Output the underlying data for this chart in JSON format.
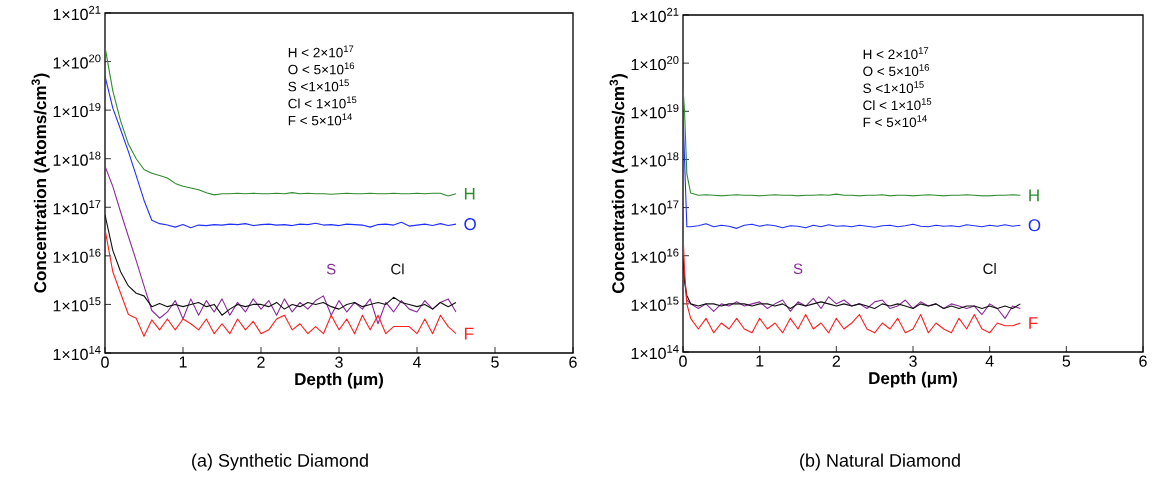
{
  "chart_data": [
    {
      "type": "line",
      "xlabel": "Depth (μm)",
      "ylabel": "Concentration (Atoms/cm$^{3}$)",
      "annotations": [
        "H < 2×10$^{17}$",
        "O < 5×10$^{16}$",
        "S <1×10$^{15}$",
        "Cl < 1×10$^{15}$",
        "F < 5×10$^{14}$",
        "(a) Synthetic Diamond"
      ],
      "log": "y",
      "marker": "none",
      "xlim": [
        0,
        6
      ],
      "xticks": [
        0,
        1,
        2,
        3,
        4,
        5,
        6
      ],
      "ylim": [
        100000000000000.0,
        1e+21
      ],
      "yticks": [
        {
          "value": 100000000000000.0,
          "label": "1×10$^{14}$"
        },
        {
          "value": 1000000000000000.0,
          "label": "1×10$^{15}$"
        },
        {
          "value": 1e+16,
          "label": "1×10$^{16}$"
        },
        {
          "value": 1e+17,
          "label": "1×10$^{17}$"
        },
        {
          "value": 1e+18,
          "label": "1×10$^{18}$"
        },
        {
          "value": 1e+19,
          "label": "1×10$^{19}$"
        },
        {
          "value": 1e+20,
          "label": "1×10$^{20}$"
        },
        {
          "value": 1e+21,
          "label": "1×10$^{21}$"
        }
      ],
      "x": [
        0,
        0.1,
        0.2,
        0.3,
        0.4,
        0.5,
        0.6,
        0.7,
        0.8,
        0.9,
        1.0,
        1.1,
        1.2,
        1.3,
        1.4,
        1.5,
        1.6,
        1.7,
        1.8,
        1.9,
        2.0,
        2.1,
        2.2,
        2.3,
        2.4,
        2.5,
        2.6,
        2.7,
        2.8,
        2.9,
        3.0,
        3.1,
        3.2,
        3.3,
        3.4,
        3.5,
        3.6,
        3.7,
        3.8,
        3.9,
        4.0,
        4.1,
        4.2,
        4.3,
        4.4,
        4.5
      ],
      "series": [
        {
          "name": "H",
          "color": "#2e8b2e",
          "values": [
            2e+20,
            2.5e+19,
            6e+18,
            2e+18,
            1e+18,
            6e+17,
            5e+17,
            4.5e+17,
            4e+17,
            3.1e+17,
            2.7e+17,
            2.5e+17,
            2.3e+17,
            2e+17,
            1.8e+17,
            1.9e+17,
            1.9e+17,
            1.95e+17,
            1.9e+17,
            1.95e+17,
            1.9e+17,
            1.9e+17,
            1.95e+17,
            1.9e+17,
            2e+17,
            1.9e+17,
            1.95e+17,
            1.9e+17,
            1.9e+17,
            1.85e+17,
            1.9e+17,
            1.95e+17,
            1.9e+17,
            1.9e+17,
            1.95e+17,
            1.9e+17,
            1.9e+17,
            1.95e+17,
            1.9e+17,
            1.9e+17,
            1.95e+17,
            1.9e+17,
            1.95e+17,
            1.95e+17,
            1.7e+17,
            1.9e+17
          ]
        },
        {
          "name": "O",
          "color": "#1f2fff",
          "values": [
            5e+19,
            1.1e+19,
            4e+18,
            1.4e+18,
            4.5e+17,
            1.4e+17,
            5.4e+16,
            4.6e+16,
            4.3e+16,
            3.9e+16,
            4.4e+16,
            3.8e+16,
            4.3e+16,
            4.2e+16,
            4.4e+16,
            4.3e+16,
            4.5e+16,
            4.4e+16,
            4.6e+16,
            4.2e+16,
            4.4e+16,
            4.5e+16,
            4.3e+16,
            4.4e+16,
            4.2e+16,
            4.5e+16,
            4.4e+16,
            4.7e+16,
            4.3e+16,
            4.4e+16,
            4.2e+16,
            4.5e+16,
            4.4e+16,
            4.3e+16,
            3.9e+16,
            4.4e+16,
            4.5e+16,
            4.3e+16,
            4.9e+16,
            4.1e+16,
            4.3e+16,
            4.5e+16,
            4.2e+16,
            4.6e+16,
            4.2e+16,
            4.5e+16
          ]
        },
        {
          "name": "S",
          "color": "#8b2a9b",
          "values": [
            7e+17,
            2.7e+17,
            8e+16,
            2.5e+16,
            8000000000000000.0,
            2400000000000000.0,
            750000000000000.0,
            520000000000000.0,
            700000000000000.0,
            1200000000000000.0,
            500000000000000.0,
            1300000000000000.0,
            600000000000000.0,
            1200000000000000.0,
            700000000000000.0,
            1300000000000000.0,
            600000000000000.0,
            1100000000000000.0,
            700000000000000.0,
            1300000000000000.0,
            800000000000000.0,
            1200000000000000.0,
            600000000000000.0,
            1300000000000000.0,
            700000000000000.0,
            1100000000000000.0,
            800000000000000.0,
            1200000000000000.0,
            1500000000000000.0,
            600000000000000.0,
            1200000000000000.0,
            700000000000000.0,
            1100000000000000.0,
            800000000000000.0,
            1300000000000000.0,
            400000000000000.0,
            1100000000000000.0,
            700000000000000.0,
            1200000000000000.0,
            800000000000000.0,
            700000000000000.0,
            1200000000000000.0,
            800000000000000.0,
            1100000000000000.0,
            1300000000000000.0,
            700000000000000.0
          ]
        },
        {
          "name": "Cl",
          "color": "#111111",
          "values": [
            7e+16,
            1.3e+16,
            4700000000000000.0,
            2400000000000000.0,
            1700000000000000.0,
            1500000000000000.0,
            900000000000000.0,
            1050000000000000.0,
            900000000000000.0,
            1000000000000000.0,
            900000000000000.0,
            1000000000000000.0,
            1100000000000000.0,
            900000000000000.0,
            1000000000000000.0,
            600000000000000.0,
            800000000000000.0,
            1000000000000000.0,
            900000000000000.0,
            1000000000000000.0,
            1000000000000000.0,
            900000000000000.0,
            1100000000000000.0,
            800000000000000.0,
            1000000000000000.0,
            900000000000000.0,
            1100000000000000.0,
            1000000000000000.0,
            1100000000000000.0,
            900000000000000.0,
            800000000000000.0,
            1000000000000000.0,
            1100000000000000.0,
            900000000000000.0,
            1000000000000000.0,
            1100000000000000.0,
            1000000000000000.0,
            1400000000000000.0,
            1100000000000000.0,
            1000000000000000.0,
            900000000000000.0,
            1000000000000000.0,
            800000000000000.0,
            1100000000000000.0,
            900000000000000.0,
            1100000000000000.0
          ]
        },
        {
          "name": "F",
          "color": "#ff2020",
          "values": [
            3.5e+16,
            4700000000000000.0,
            1700000000000000.0,
            620000000000000.0,
            520000000000000.0,
            220000000000000.0,
            480000000000000.0,
            300000000000000.0,
            500000000000000.0,
            300000000000000.0,
            500000000000000.0,
            400000000000000.0,
            300000000000000.0,
            500000000000000.0,
            250000000000000.0,
            400000000000000.0,
            250000000000000.0,
            500000000000000.0,
            300000000000000.0,
            450000000000000.0,
            250000000000000.0,
            300000000000000.0,
            500000000000000.0,
            600000000000000.0,
            300000000000000.0,
            400000000000000.0,
            250000000000000.0,
            350000000000000.0,
            250000000000000.0,
            600000000000000.0,
            300000000000000.0,
            500000000000000.0,
            250000000000000.0,
            600000000000000.0,
            300000000000000.0,
            600000000000000.0,
            250000000000000.0,
            350000000000000.0,
            350000000000000.0,
            350000000000000.0,
            250000000000000.0,
            500000000000000.0,
            250000000000000.0,
            600000000000000.0,
            350000000000000.0,
            250000000000000.0
          ]
        }
      ]
    },
    {
      "type": "line",
      "xlabel": "Depth (μm)",
      "ylabel": "Concentration (Atoms/cm$^{3}$)",
      "annotations": [
        "H < 2×10$^{17}$",
        "O < 5×10$^{16}$",
        "S <1×10$^{15}$",
        "Cl < 1×10$^{15}$",
        "F < 5×10$^{14}$",
        "(b) Natural Diamond"
      ],
      "log": "y",
      "marker": "none",
      "xlim": [
        0,
        6
      ],
      "xticks": [
        0,
        1,
        2,
        3,
        4,
        5,
        6
      ],
      "ylim": [
        100000000000000.0,
        1e+21
      ],
      "yticks": [
        {
          "value": 100000000000000.0,
          "label": "1×10$^{14}$"
        },
        {
          "value": 1000000000000000.0,
          "label": "1×10$^{15}$"
        },
        {
          "value": 1e+16,
          "label": "1×10$^{16}$"
        },
        {
          "value": 1e+17,
          "label": "1×10$^{17}$"
        },
        {
          "value": 1e+18,
          "label": "1×10$^{18}$"
        },
        {
          "value": 1e+19,
          "label": "1×10$^{19}$"
        },
        {
          "value": 1e+20,
          "label": "1×10$^{20}$"
        },
        {
          "value": 1e+21,
          "label": "1×10$^{21}$"
        }
      ],
      "x": [
        0,
        0.02,
        0.05,
        0.1,
        0.2,
        0.3,
        0.4,
        0.5,
        0.6,
        0.7,
        0.8,
        0.9,
        1.0,
        1.1,
        1.2,
        1.3,
        1.4,
        1.5,
        1.6,
        1.7,
        1.8,
        1.9,
        2.0,
        2.1,
        2.2,
        2.3,
        2.4,
        2.5,
        2.6,
        2.7,
        2.8,
        2.9,
        3.0,
        3.1,
        3.2,
        3.3,
        3.4,
        3.5,
        3.6,
        3.7,
        3.8,
        3.9,
        4.0,
        4.1,
        4.2,
        4.3,
        4.4
      ],
      "series": [
        {
          "name": "H",
          "color": "#2e8b2e",
          "values": [
            3e+19,
            1e+19,
            5e+17,
            2e+17,
            1.8e+17,
            1.85e+17,
            1.8e+17,
            1.75e+17,
            1.8e+17,
            1.85e+17,
            1.8e+17,
            1.8e+17,
            1.75e+17,
            1.8e+17,
            1.85e+17,
            1.8e+17,
            1.8e+17,
            1.75e+17,
            1.8e+17,
            1.8e+17,
            1.85e+17,
            1.8e+17,
            1.9e+17,
            1.8e+17,
            1.8e+17,
            1.75e+17,
            1.8e+17,
            1.8e+17,
            1.85e+17,
            1.75e+17,
            1.8e+17,
            1.8e+17,
            1.75e+17,
            1.8e+17,
            1.85e+17,
            1.8e+17,
            1.75e+17,
            1.8e+17,
            1.8e+17,
            1.85e+17,
            1.8e+17,
            1.75e+17,
            1.75e+17,
            1.8e+17,
            1.8e+17,
            1.85e+17,
            1.8e+17
          ]
        },
        {
          "name": "O",
          "color": "#1f2fff",
          "values": [
            1e+19,
            1e+18,
            4e+16,
            4e+16,
            4.2e+16,
            4.6e+16,
            4e+16,
            4.3e+16,
            4.1e+16,
            3.7e+16,
            4.3e+16,
            4.5e+16,
            4.1e+16,
            4.4e+16,
            4.2e+16,
            3.8e+16,
            4.2e+16,
            4.1e+16,
            3.8e+16,
            4.3e+16,
            4e+16,
            4.4e+16,
            4.1e+16,
            4.2e+16,
            4e+16,
            4.3e+16,
            4.1e+16,
            3.9e+16,
            4.2e+16,
            4.3e+16,
            4e+16,
            4.2e+16,
            4.5e+16,
            4.1e+16,
            4e+16,
            4.3e+16,
            4.1e+16,
            4.2e+16,
            4e+16,
            4.4e+16,
            4.2e+16,
            4e+16,
            4.3e+16,
            4.1e+16,
            4.4e+16,
            4.1e+16,
            4.3e+16
          ]
        },
        {
          "name": "S",
          "color": "#8b2a9b",
          "values": [
            1e+16,
            3000000000000000.0,
            1200000000000000.0,
            1000000000000000.0,
            800000000000000.0,
            1000000000000000.0,
            700000000000000.0,
            1000000000000000.0,
            900000000000000.0,
            1100000000000000.0,
            900000000000000.0,
            1000000000000000.0,
            1100000000000000.0,
            800000000000000.0,
            1000000000000000.0,
            1200000000000000.0,
            700000000000000.0,
            1100000000000000.0,
            900000000000000.0,
            1300000000000000.0,
            800000000000000.0,
            1400000000000000.0,
            1000000000000000.0,
            1200000000000000.0,
            900000000000000.0,
            1000000000000000.0,
            800000000000000.0,
            1100000000000000.0,
            1200000000000000.0,
            800000000000000.0,
            900000000000000.0,
            1200000000000000.0,
            800000000000000.0,
            1100000000000000.0,
            900000000000000.0,
            1000000000000000.0,
            800000000000000.0,
            1000000000000000.0,
            900000000000000.0,
            800000000000000.0,
            900000000000000.0,
            600000000000000.0,
            1000000000000000.0,
            800000000000000.0,
            500000000000000.0,
            900000000000000.0,
            800000000000000.0
          ]
        },
        {
          "name": "Cl",
          "color": "#111111",
          "values": [
            1e+16,
            3000000000000000.0,
            1500000000000000.0,
            1000000000000000.0,
            900000000000000.0,
            1000000000000000.0,
            1000000000000000.0,
            900000000000000.0,
            1000000000000000.0,
            1000000000000000.0,
            1000000000000000.0,
            900000000000000.0,
            1000000000000000.0,
            1000000000000000.0,
            900000000000000.0,
            1000000000000000.0,
            800000000000000.0,
            1000000000000000.0,
            900000000000000.0,
            1000000000000000.0,
            1100000000000000.0,
            1000000000000000.0,
            900000000000000.0,
            1000000000000000.0,
            900000000000000.0,
            1000000000000000.0,
            900000000000000.0,
            800000000000000.0,
            1000000000000000.0,
            900000000000000.0,
            1000000000000000.0,
            900000000000000.0,
            800000000000000.0,
            1000000000000000.0,
            900000000000000.0,
            1000000000000000.0,
            800000000000000.0,
            900000000000000.0,
            800000000000000.0,
            900000000000000.0,
            900000000000000.0,
            800000000000000.0,
            900000000000000.0,
            800000000000000.0,
            900000000000000.0,
            800000000000000.0,
            1000000000000000.0
          ]
        },
        {
          "name": "F",
          "color": "#ff2020",
          "values": [
            3e+16,
            5000000000000000.0,
            1000000000000000.0,
            500000000000000.0,
            300000000000000.0,
            500000000000000.0,
            250000000000000.0,
            400000000000000.0,
            300000000000000.0,
            500000000000000.0,
            300000000000000.0,
            250000000000000.0,
            500000000000000.0,
            300000000000000.0,
            400000000000000.0,
            250000000000000.0,
            500000000000000.0,
            300000000000000.0,
            600000000000000.0,
            300000000000000.0,
            400000000000000.0,
            250000000000000.0,
            500000000000000.0,
            300000000000000.0,
            400000000000000.0,
            600000000000000.0,
            300000000000000.0,
            250000000000000.0,
            400000000000000.0,
            300000000000000.0,
            500000000000000.0,
            250000000000000.0,
            300000000000000.0,
            600000000000000.0,
            250000000000000.0,
            400000000000000.0,
            300000000000000.0,
            250000000000000.0,
            500000000000000.0,
            300000000000000.0,
            600000000000000.0,
            300000000000000.0,
            250000000000000.0,
            400000000000000.0,
            350000000000000.0,
            350000000000000.0,
            400000000000000.0
          ]
        }
      ]
    }
  ]
}
